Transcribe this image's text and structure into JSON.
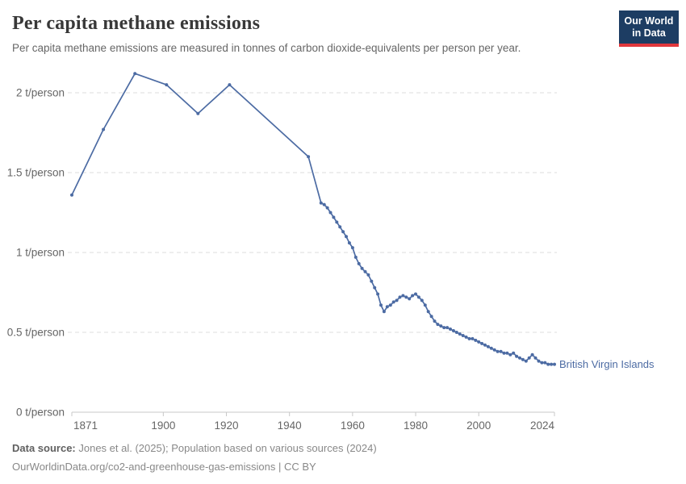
{
  "header": {
    "title": "Per capita methane emissions",
    "subtitle": "Per capita methane emissions are measured in tonnes of carbon dioxide-equivalents per person per year.",
    "logo": {
      "line1": "Our World",
      "line2": "in Data"
    }
  },
  "colors": {
    "series": "#4c6ba3",
    "logo_bg": "#1d3d63",
    "logo_accent": "#e0373c",
    "grid": "#dddddd",
    "axis": "#c8c8c8",
    "tick_label": "#666666"
  },
  "chart_data": {
    "type": "line",
    "title": "Per capita methane emissions",
    "unit": "t/person",
    "xlim": [
      1871,
      2024
    ],
    "ylim": [
      0,
      2.2
    ],
    "grid": "horizontal-dashed",
    "legend_position": "line-end-label",
    "xticks": [
      "1871",
      "1900",
      "1920",
      "1940",
      "1960",
      "1980",
      "2000",
      "2024"
    ],
    "yticks": [
      {
        "value": 0,
        "label": "0 t/person"
      },
      {
        "value": 0.5,
        "label": "0.5 t/person"
      },
      {
        "value": 1,
        "label": "1 t/person"
      },
      {
        "value": 1.5,
        "label": "1.5 t/person"
      },
      {
        "value": 2,
        "label": "2 t/person"
      }
    ],
    "series": [
      {
        "name": "British Virgin Islands",
        "color": "#4c6ba3",
        "points": [
          [
            1871,
            1.36
          ],
          [
            1881,
            1.77
          ],
          [
            1891,
            2.12
          ],
          [
            1901,
            2.05
          ],
          [
            1911,
            1.87
          ],
          [
            1921,
            2.05
          ],
          [
            1946,
            1.6
          ],
          [
            1950,
            1.31
          ],
          [
            1951,
            1.3
          ],
          [
            1952,
            1.28
          ],
          [
            1953,
            1.25
          ],
          [
            1954,
            1.22
          ],
          [
            1955,
            1.19
          ],
          [
            1956,
            1.16
          ],
          [
            1957,
            1.13
          ],
          [
            1958,
            1.1
          ],
          [
            1959,
            1.06
          ],
          [
            1960,
            1.03
          ],
          [
            1961,
            0.97
          ],
          [
            1962,
            0.93
          ],
          [
            1963,
            0.9
          ],
          [
            1964,
            0.88
          ],
          [
            1965,
            0.86
          ],
          [
            1966,
            0.82
          ],
          [
            1967,
            0.78
          ],
          [
            1968,
            0.74
          ],
          [
            1969,
            0.67
          ],
          [
            1970,
            0.63
          ],
          [
            1971,
            0.66
          ],
          [
            1972,
            0.67
          ],
          [
            1973,
            0.69
          ],
          [
            1974,
            0.7
          ],
          [
            1975,
            0.72
          ],
          [
            1976,
            0.73
          ],
          [
            1977,
            0.72
          ],
          [
            1978,
            0.71
          ],
          [
            1979,
            0.73
          ],
          [
            1980,
            0.74
          ],
          [
            1981,
            0.72
          ],
          [
            1982,
            0.7
          ],
          [
            1983,
            0.67
          ],
          [
            1984,
            0.63
          ],
          [
            1985,
            0.6
          ],
          [
            1986,
            0.57
          ],
          [
            1987,
            0.55
          ],
          [
            1988,
            0.54
          ],
          [
            1989,
            0.53
          ],
          [
            1990,
            0.53
          ],
          [
            1991,
            0.52
          ],
          [
            1992,
            0.51
          ],
          [
            1993,
            0.5
          ],
          [
            1994,
            0.49
          ],
          [
            1995,
            0.48
          ],
          [
            1996,
            0.47
          ],
          [
            1997,
            0.46
          ],
          [
            1998,
            0.46
          ],
          [
            1999,
            0.45
          ],
          [
            2000,
            0.44
          ],
          [
            2001,
            0.43
          ],
          [
            2002,
            0.42
          ],
          [
            2003,
            0.41
          ],
          [
            2004,
            0.4
          ],
          [
            2005,
            0.39
          ],
          [
            2006,
            0.38
          ],
          [
            2007,
            0.38
          ],
          [
            2008,
            0.37
          ],
          [
            2009,
            0.37
          ],
          [
            2010,
            0.36
          ],
          [
            2011,
            0.37
          ],
          [
            2012,
            0.35
          ],
          [
            2013,
            0.34
          ],
          [
            2014,
            0.33
          ],
          [
            2015,
            0.32
          ],
          [
            2016,
            0.34
          ],
          [
            2017,
            0.36
          ],
          [
            2018,
            0.34
          ],
          [
            2019,
            0.32
          ],
          [
            2020,
            0.31
          ],
          [
            2021,
            0.31
          ],
          [
            2022,
            0.3
          ],
          [
            2023,
            0.3
          ],
          [
            2024,
            0.3
          ]
        ]
      }
    ]
  },
  "footer": {
    "source_label": "Data source:",
    "source_text": " Jones et al. (2025); Population based on various sources (2024)",
    "note_text": "OurWorldinData.org/co2-and-greenhouse-gas-emissions | CC BY"
  }
}
